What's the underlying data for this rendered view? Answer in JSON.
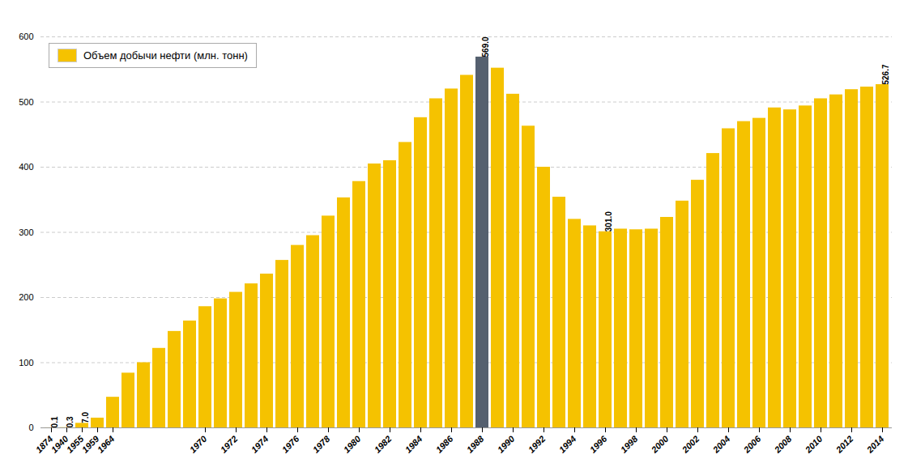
{
  "chart_data": {
    "type": "bar",
    "categories": [
      "1874",
      "1940",
      "1955",
      "1959",
      "1964",
      null,
      null,
      null,
      null,
      null,
      "1970",
      null,
      "1972",
      null,
      "1974",
      null,
      "1976",
      null,
      "1978",
      null,
      "1980",
      null,
      "1982",
      null,
      "1984",
      null,
      "1986",
      null,
      "1988",
      null,
      "1990",
      null,
      "1992",
      null,
      "1994",
      null,
      "1996",
      null,
      "1998",
      null,
      "2000",
      null,
      "2002",
      null,
      "2004",
      null,
      "2006",
      null,
      "2008",
      null,
      "2010",
      null,
      "2012",
      null,
      "2014"
    ],
    "series": [
      {
        "name": "Объем добычи нефти (млн. тонн)",
        "color": "#F5C200",
        "colors": [
          "#F5C200",
          "#F5C200",
          "#F5C200",
          "#F5C200",
          "#F5C200",
          "#F5C200",
          "#F5C200",
          "#F5C200",
          "#F5C200",
          "#F5C200",
          "#F5C200",
          "#F5C200",
          "#F5C200",
          "#F5C200",
          "#F5C200",
          "#F5C200",
          "#F5C200",
          "#F5C200",
          "#F5C200",
          "#F5C200",
          "#F5C200",
          "#F5C200",
          "#F5C200",
          "#F5C200",
          "#F5C200",
          "#F5C200",
          "#F5C200",
          "#F5C200",
          "#55606F",
          "#F5C200",
          "#F5C200",
          "#F5C200",
          "#F5C200",
          "#F5C200",
          "#F5C200",
          "#F5C200",
          "#F5C200",
          "#F5C200",
          "#F5C200",
          "#F5C200",
          "#F5C200",
          "#F5C200",
          "#F5C200",
          "#F5C200",
          "#F5C200",
          "#F5C200",
          "#F5C200",
          "#F5C200",
          "#F5C200",
          "#F5C200",
          "#F5C200",
          "#F5C200",
          "#F5C200",
          "#F5C200",
          "#F5C200"
        ],
        "values": [
          0.1,
          0.3,
          7.0,
          15.0,
          47.0,
          84.0,
          100.0,
          122.0,
          148.0,
          164.0,
          186.0,
          198.0,
          208.0,
          221.0,
          236.0,
          257.0,
          280.0,
          295.0,
          325.0,
          353.0,
          378.0,
          405.0,
          410.0,
          438.0,
          476.0,
          505.0,
          520.0,
          541.0,
          569.0,
          552.0,
          512.0,
          463.0,
          400.0,
          354.0,
          320.0,
          310.0,
          301.0,
          305.0,
          304.0,
          305.0,
          323.0,
          348.0,
          380.0,
          421.0,
          459.0,
          470.0,
          475.0,
          491.0,
          488.0,
          494.0,
          505.0,
          511.0,
          519.0,
          523.0,
          526.7
        ]
      }
    ],
    "annotations": [
      {
        "category": "1988",
        "text": "569.0"
      },
      {
        "category": "1996",
        "text": "301.0"
      },
      {
        "category": "2014",
        "text": "526.7"
      },
      {
        "category": "1874",
        "text": "0.1"
      },
      {
        "category": "1940",
        "text": "0.3"
      },
      {
        "category": "1955",
        "text": "7.0"
      }
    ],
    "ylim": [
      0,
      600
    ],
    "yticks": [
      0,
      100,
      200,
      300,
      400,
      500,
      600
    ],
    "grid": true,
    "legend": "upper left"
  }
}
